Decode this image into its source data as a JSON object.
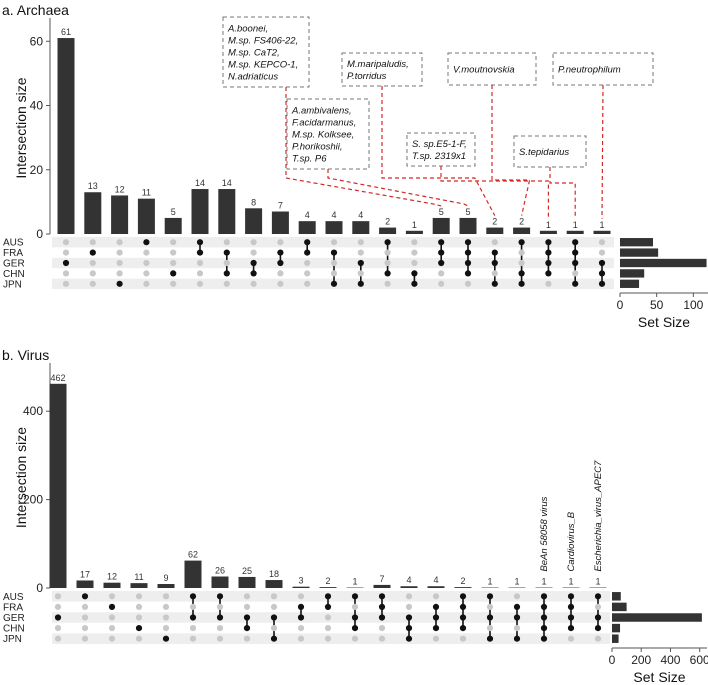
{
  "chart_data": [
    {
      "type": "upset",
      "title": "a. Archaea",
      "ylabel": "Intersection size",
      "xlabel_sets": "Set Size",
      "ylim": [
        0,
        66
      ],
      "yticks": [
        0,
        20,
        40,
        60
      ],
      "sets": [
        "AUS",
        "FRA",
        "GER",
        "CHN",
        "JPN"
      ],
      "set_sizes": [
        45,
        52,
        118,
        33,
        26
      ],
      "set_size_ticks": [
        0,
        50,
        100
      ],
      "set_size_max": 120,
      "intersections": [
        {
          "value": 61,
          "members": [
            "GER"
          ]
        },
        {
          "value": 13,
          "members": [
            "FRA"
          ]
        },
        {
          "value": 12,
          "members": [
            "JPN"
          ]
        },
        {
          "value": 11,
          "members": [
            "AUS"
          ]
        },
        {
          "value": 5,
          "members": [
            "CHN"
          ]
        },
        {
          "value": 14,
          "members": [
            "AUS",
            "FRA"
          ]
        },
        {
          "value": 14,
          "members": [
            "FRA",
            "CHN"
          ]
        },
        {
          "value": 8,
          "members": [
            "GER",
            "CHN"
          ]
        },
        {
          "value": 7,
          "members": [
            "FRA",
            "GER"
          ]
        },
        {
          "value": 4,
          "members": [
            "AUS",
            "FRA"
          ]
        },
        {
          "value": 4,
          "members": [
            "FRA",
            "JPN"
          ]
        },
        {
          "value": 4,
          "members": [
            "GER",
            "JPN"
          ]
        },
        {
          "value": 2,
          "members": [
            "AUS",
            "CHN"
          ]
        },
        {
          "value": 1,
          "members": [
            "CHN",
            "JPN"
          ]
        },
        {
          "value": 5,
          "members": [
            "AUS",
            "FRA",
            "GER"
          ]
        },
        {
          "value": 5,
          "members": [
            "AUS",
            "FRA",
            "GER",
            "CHN"
          ]
        },
        {
          "value": 2,
          "members": [
            "FRA",
            "GER",
            "JPN"
          ]
        },
        {
          "value": 2,
          "members": [
            "AUS",
            "CHN",
            "JPN"
          ]
        },
        {
          "value": 1,
          "members": [
            "AUS",
            "FRA",
            "GER",
            "CHN"
          ]
        },
        {
          "value": 1,
          "members": [
            "AUS",
            "FRA",
            "GER",
            "JPN"
          ]
        },
        {
          "value": 1,
          "members": [
            "GER",
            "CHN",
            "JPN"
          ]
        }
      ],
      "annotations": [
        {
          "lines": [
            "A.boonei,",
            "M.sp. FS406-22,",
            "M.sp. CaT2,",
            "M.sp. KEPCO-1,",
            "N.adriaticus"
          ],
          "bar": 14
        },
        {
          "lines": [
            "M.maripaludis,",
            "P.torridus"
          ],
          "bar": 16
        },
        {
          "lines": [
            "V.moutnovskia"
          ],
          "bar": 17
        },
        {
          "lines": [
            "P.neutrophilum"
          ],
          "bar": 20
        },
        {
          "lines": [
            "A.ambivalens,",
            "F.acidarmanus,",
            "M.sp. Kolksee,",
            "P.horikoshii,",
            "T.sp. P6"
          ],
          "bar": 15
        },
        {
          "lines": [
            "S. sp.E5-1-F,",
            "T.sp. 2319x1"
          ],
          "bar": 18
        },
        {
          "lines": [
            "S.tepidarius"
          ],
          "bar": 19
        }
      ]
    },
    {
      "type": "upset",
      "title": "b. Virus",
      "ylabel": "Intersection size",
      "xlabel_sets": "Set Size",
      "ylim": [
        0,
        500
      ],
      "yticks": [
        0,
        200,
        400
      ],
      "sets": [
        "AUS",
        "FRA",
        "GER",
        "CHN",
        "JPN"
      ],
      "set_sizes": [
        60,
        100,
        615,
        55,
        45
      ],
      "set_size_ticks": [
        0,
        200,
        400,
        600
      ],
      "set_size_max": 650,
      "intersections": [
        {
          "value": 462,
          "members": [
            "GER"
          ]
        },
        {
          "value": 17,
          "members": [
            "AUS"
          ]
        },
        {
          "value": 12,
          "members": [
            "FRA"
          ]
        },
        {
          "value": 11,
          "members": [
            "CHN"
          ]
        },
        {
          "value": 9,
          "members": [
            "JPN"
          ]
        },
        {
          "value": 62,
          "members": [
            "AUS",
            "GER"
          ]
        },
        {
          "value": 26,
          "members": [
            "AUS",
            "GER"
          ]
        },
        {
          "value": 25,
          "members": [
            "GER",
            "CHN"
          ]
        },
        {
          "value": 18,
          "members": [
            "GER",
            "JPN"
          ]
        },
        {
          "value": 3,
          "members": [
            "FRA",
            "GER"
          ]
        },
        {
          "value": 2,
          "members": [
            "AUS",
            "FRA"
          ]
        },
        {
          "value": 1,
          "members": [
            "AUS",
            "GER",
            "CHN"
          ]
        },
        {
          "value": 7,
          "members": [
            "AUS",
            "FRA",
            "GER"
          ]
        },
        {
          "value": 4,
          "members": [
            "GER",
            "CHN",
            "JPN"
          ]
        },
        {
          "value": 4,
          "members": [
            "FRA",
            "GER",
            "CHN"
          ]
        },
        {
          "value": 2,
          "members": [
            "AUS",
            "FRA",
            "GER",
            "CHN"
          ]
        },
        {
          "value": 1,
          "members": [
            "AUS",
            "GER",
            "JPN"
          ]
        },
        {
          "value": 1,
          "members": [
            "FRA",
            "GER",
            "JPN"
          ]
        },
        {
          "value": 1,
          "members": [
            "AUS",
            "FRA",
            "GER",
            "CHN",
            "JPN"
          ]
        },
        {
          "value": 1,
          "members": [
            "AUS",
            "FRA",
            "GER",
            "CHN"
          ]
        },
        {
          "value": 1,
          "members": [
            "AUS",
            "GER",
            "CHN"
          ]
        }
      ],
      "bar_labels_rotated": [
        {
          "text": "BeAn 58058 virus",
          "bar": 18
        },
        {
          "text": "Cardiovirus_B",
          "bar": 19
        },
        {
          "text": "Escherichia_virus_APEC7",
          "bar": 20
        }
      ]
    }
  ]
}
